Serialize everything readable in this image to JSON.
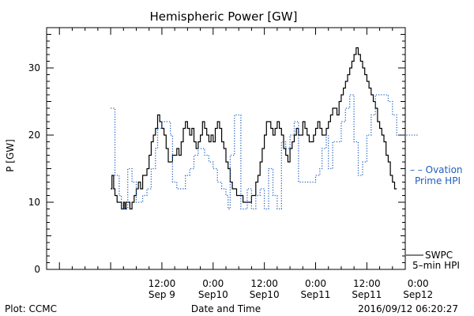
{
  "chart_data": {
    "type": "line",
    "title": "Hemispheric Power [GW]",
    "ylabel": "P [GW]",
    "xlabel": "Date and Time",
    "ylim": [
      0,
      36
    ],
    "xlim_hours": [
      -15,
      69
    ],
    "x_units": "hours since 2016-09-09 00:00 UT",
    "yticks": [
      0,
      10,
      20,
      30
    ],
    "xticks": [
      {
        "x": 12,
        "line1": "12:00",
        "line2": "Sep 9"
      },
      {
        "x": 24,
        "line1": "0:00",
        "line2": "Sep10"
      },
      {
        "x": 36,
        "line1": "12:00",
        "line2": "Sep10"
      },
      {
        "x": 48,
        "line1": "0:00",
        "line2": "Sep11"
      },
      {
        "x": 60,
        "line1": "12:00",
        "line2": "Sep11"
      },
      {
        "x": 72,
        "line1": "0:00",
        "line2": "Sep12"
      }
    ],
    "series": [
      {
        "name": "SWPC 5-min HPI",
        "legend_line1": "SWPC",
        "legend_line2": "5–min HPI",
        "style": "solid",
        "color": "#000000",
        "points": [
          [
            0.0,
            12
          ],
          [
            0.3,
            14
          ],
          [
            0.7,
            12
          ],
          [
            1.0,
            11
          ],
          [
            1.5,
            10
          ],
          [
            2.0,
            10
          ],
          [
            2.5,
            9
          ],
          [
            3.0,
            10
          ],
          [
            3.3,
            9
          ],
          [
            3.6,
            10
          ],
          [
            4.0,
            10
          ],
          [
            4.5,
            9
          ],
          [
            5.0,
            10
          ],
          [
            5.5,
            11
          ],
          [
            6.0,
            12
          ],
          [
            6.5,
            13
          ],
          [
            7.0,
            12
          ],
          [
            7.5,
            14
          ],
          [
            8.0,
            14
          ],
          [
            8.5,
            15
          ],
          [
            9.0,
            17
          ],
          [
            9.5,
            19
          ],
          [
            10.0,
            20
          ],
          [
            10.5,
            21
          ],
          [
            11.0,
            23
          ],
          [
            11.5,
            22
          ],
          [
            12.0,
            21
          ],
          [
            12.5,
            20
          ],
          [
            13.0,
            18
          ],
          [
            13.5,
            16
          ],
          [
            14.0,
            16
          ],
          [
            14.5,
            17
          ],
          [
            15.0,
            17
          ],
          [
            15.5,
            18
          ],
          [
            16.0,
            17
          ],
          [
            16.5,
            19
          ],
          [
            17.0,
            21
          ],
          [
            17.5,
            22
          ],
          [
            18.0,
            21
          ],
          [
            18.5,
            20
          ],
          [
            19.0,
            21
          ],
          [
            19.5,
            19
          ],
          [
            20.0,
            18
          ],
          [
            20.5,
            19
          ],
          [
            21.0,
            20
          ],
          [
            21.5,
            22
          ],
          [
            22.0,
            21
          ],
          [
            22.5,
            20
          ],
          [
            23.0,
            19
          ],
          [
            23.5,
            20
          ],
          [
            24.0,
            19
          ],
          [
            24.5,
            21
          ],
          [
            25.0,
            22
          ],
          [
            25.5,
            21
          ],
          [
            26.0,
            19
          ],
          [
            26.5,
            18
          ],
          [
            27.0,
            16
          ],
          [
            27.5,
            15
          ],
          [
            28.0,
            13
          ],
          [
            28.5,
            12
          ],
          [
            29.0,
            12
          ],
          [
            29.5,
            11
          ],
          [
            30.0,
            11
          ],
          [
            30.5,
            11
          ],
          [
            31.0,
            10
          ],
          [
            31.5,
            10
          ],
          [
            32.0,
            10
          ],
          [
            32.5,
            10
          ],
          [
            33.0,
            11
          ],
          [
            33.5,
            11
          ],
          [
            34.0,
            13
          ],
          [
            34.5,
            14
          ],
          [
            35.0,
            16
          ],
          [
            35.5,
            18
          ],
          [
            36.0,
            20
          ],
          [
            36.5,
            22
          ],
          [
            37.0,
            22
          ],
          [
            37.5,
            21
          ],
          [
            38.0,
            20
          ],
          [
            38.5,
            21
          ],
          [
            39.0,
            22
          ],
          [
            39.5,
            21
          ],
          [
            40.0,
            20
          ],
          [
            40.5,
            18
          ],
          [
            41.0,
            17
          ],
          [
            41.5,
            16
          ],
          [
            42.0,
            18
          ],
          [
            42.5,
            19
          ],
          [
            43.0,
            20
          ],
          [
            43.5,
            21
          ],
          [
            44.0,
            20
          ],
          [
            44.5,
            20
          ],
          [
            45.0,
            22
          ],
          [
            45.5,
            21
          ],
          [
            46.0,
            20
          ],
          [
            46.5,
            19
          ],
          [
            47.0,
            19
          ],
          [
            47.5,
            20
          ],
          [
            48.0,
            21
          ],
          [
            48.5,
            22
          ],
          [
            49.0,
            21
          ],
          [
            49.5,
            20
          ],
          [
            50.0,
            20
          ],
          [
            50.5,
            21
          ],
          [
            51.0,
            22
          ],
          [
            51.5,
            23
          ],
          [
            52.0,
            24
          ],
          [
            52.5,
            24
          ],
          [
            53.0,
            23
          ],
          [
            53.5,
            25
          ],
          [
            54.0,
            26
          ],
          [
            54.5,
            27
          ],
          [
            55.0,
            28
          ],
          [
            55.5,
            29
          ],
          [
            56.0,
            30
          ],
          [
            56.5,
            31
          ],
          [
            57.0,
            32
          ],
          [
            57.5,
            33
          ],
          [
            58.0,
            32
          ],
          [
            58.5,
            31
          ],
          [
            59.0,
            30
          ],
          [
            59.5,
            29
          ],
          [
            60.0,
            28
          ],
          [
            60.5,
            27
          ],
          [
            61.0,
            26
          ],
          [
            61.5,
            25
          ],
          [
            62.0,
            24
          ],
          [
            62.5,
            22
          ],
          [
            63.0,
            21
          ],
          [
            63.5,
            20
          ],
          [
            64.0,
            19
          ],
          [
            64.5,
            17
          ],
          [
            65.0,
            16
          ],
          [
            65.5,
            14
          ],
          [
            66.0,
            13
          ],
          [
            66.5,
            12
          ],
          [
            67.0,
            12
          ]
        ]
      },
      {
        "name": "Ovation Prime HPI",
        "legend_line1": "– – Ovation",
        "legend_line2": "Prime HPI",
        "style": "dotted",
        "color": "#1f5fbf",
        "points": [
          [
            0.0,
            24
          ],
          [
            0.5,
            24
          ],
          [
            1.0,
            14
          ],
          [
            2.0,
            11
          ],
          [
            2.5,
            9
          ],
          [
            4.0,
            15
          ],
          [
            5.0,
            13
          ],
          [
            6.0,
            10
          ],
          [
            7.5,
            11
          ],
          [
            8.5,
            12
          ],
          [
            9.5,
            15
          ],
          [
            10.5,
            18
          ],
          [
            11.0,
            21
          ],
          [
            12.0,
            22
          ],
          [
            13.0,
            22
          ],
          [
            14.0,
            20
          ],
          [
            14.5,
            13
          ],
          [
            15.5,
            12
          ],
          [
            16.5,
            12
          ],
          [
            17.5,
            14
          ],
          [
            18.5,
            15
          ],
          [
            19.5,
            17
          ],
          [
            20.5,
            18
          ],
          [
            22.0,
            17
          ],
          [
            23.0,
            16
          ],
          [
            24.0,
            15
          ],
          [
            25.0,
            13
          ],
          [
            26.0,
            12
          ],
          [
            27.0,
            11
          ],
          [
            27.5,
            9
          ],
          [
            28.0,
            17
          ],
          [
            29.0,
            23
          ],
          [
            30.0,
            23
          ],
          [
            30.5,
            9
          ],
          [
            32.0,
            12
          ],
          [
            33.0,
            9
          ],
          [
            34.0,
            11
          ],
          [
            35.0,
            12
          ],
          [
            36.0,
            9
          ],
          [
            37.0,
            15
          ],
          [
            38.0,
            11
          ],
          [
            39.0,
            9
          ],
          [
            40.0,
            19
          ],
          [
            41.0,
            18
          ],
          [
            42.0,
            20
          ],
          [
            43.0,
            22
          ],
          [
            44.0,
            13
          ],
          [
            45.0,
            13
          ],
          [
            46.0,
            13
          ],
          [
            47.0,
            13
          ],
          [
            48.0,
            14
          ],
          [
            49.0,
            15
          ],
          [
            49.5,
            18
          ],
          [
            50.5,
            20
          ],
          [
            51.0,
            15
          ],
          [
            52.0,
            19
          ],
          [
            53.0,
            19
          ],
          [
            54.0,
            22
          ],
          [
            55.0,
            24
          ],
          [
            56.0,
            26
          ],
          [
            57.0,
            19
          ],
          [
            58.0,
            14
          ],
          [
            59.0,
            16
          ],
          [
            60.0,
            20
          ],
          [
            61.0,
            23
          ],
          [
            62.0,
            26
          ],
          [
            63.0,
            26
          ],
          [
            64.0,
            26
          ],
          [
            65.0,
            25
          ],
          [
            66.0,
            23
          ],
          [
            67.0,
            20
          ],
          [
            68.0,
            20
          ],
          [
            69.0,
            20
          ],
          [
            70.0,
            20
          ],
          [
            71.0,
            20
          ],
          [
            72.0,
            20
          ]
        ]
      }
    ]
  },
  "footer": {
    "plot_credit": "Plot: CCMC",
    "axis_caption": "Date and Time",
    "timestamp": "2016/09/12 06:20:27"
  }
}
